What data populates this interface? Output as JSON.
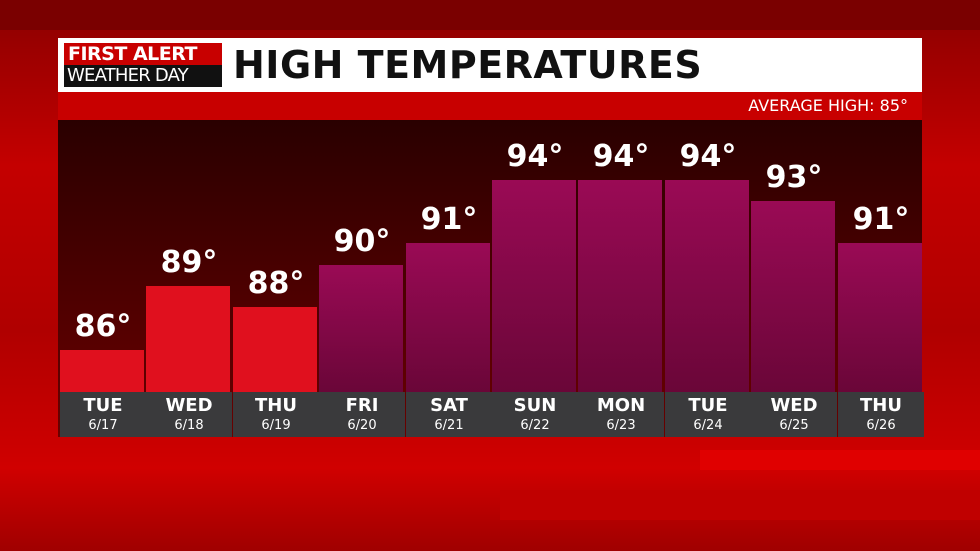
{
  "logo": {
    "line1": "FIRST ALERT",
    "line2": "WEATHER DAY"
  },
  "title": "HIGH TEMPERATURES",
  "average": "AVERAGE HIGH: 85°",
  "colors": {
    "warm": "#e0101e",
    "hot": "#8a0848",
    "label_bg": "#3a3a3c"
  },
  "chart_data": {
    "type": "bar",
    "title": "HIGH TEMPERATURES",
    "categories": [
      "TUE",
      "WED",
      "THU",
      "FRI",
      "SAT",
      "SUN",
      "MON",
      "TUE",
      "WED",
      "THU"
    ],
    "dates": [
      "6/17",
      "6/18",
      "6/19",
      "6/20",
      "6/21",
      "6/22",
      "6/23",
      "6/24",
      "6/25",
      "6/26"
    ],
    "values": [
      86,
      89,
      88,
      90,
      91,
      94,
      94,
      94,
      93,
      91
    ],
    "value_labels": [
      "86°",
      "89°",
      "88°",
      "90°",
      "91°",
      "94°",
      "94°",
      "94°",
      "93°",
      "91°"
    ],
    "ylim": [
      84,
      96.8
    ],
    "grid": false
  }
}
